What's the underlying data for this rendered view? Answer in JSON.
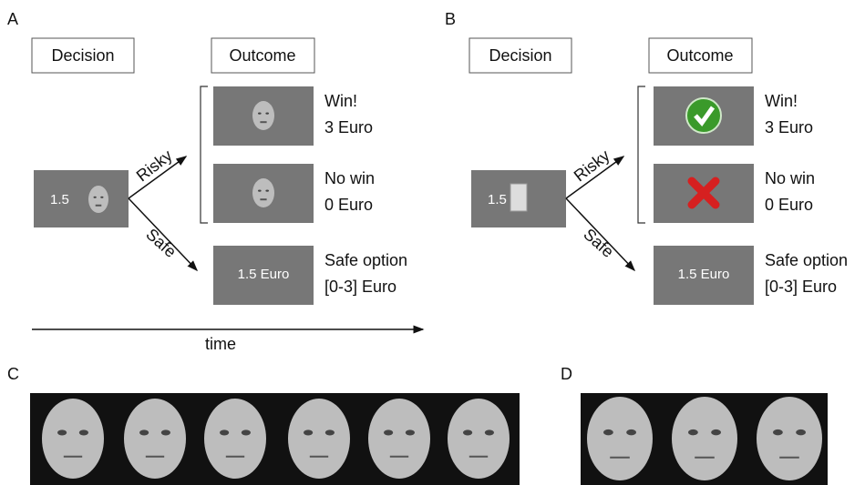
{
  "panels": [
    {
      "label": "A",
      "decision": "Decision",
      "outcome": "Outcome",
      "stake": "1.5",
      "risky": "Risky",
      "safe": "Safe",
      "outcomes": [
        {
          "line1": "Win!",
          "line2": "3 Euro"
        },
        {
          "line1": "No win",
          "line2": "0 Euro"
        },
        {
          "line1": "Safe option",
          "line2": "[0-3] Euro"
        }
      ],
      "safe_box": "1.5 Euro",
      "time": "time"
    },
    {
      "label": "B",
      "decision": "Decision",
      "outcome": "Outcome",
      "stake": "1.5",
      "risky": "Risky",
      "safe": "Safe",
      "outcomes": [
        {
          "line1": "Win!",
          "line2": "3 Euro"
        },
        {
          "line1": "No win",
          "line2": "0 Euro"
        },
        {
          "line1": "Safe option",
          "line2": "[0-3] Euro"
        }
      ],
      "safe_box": "1.5 Euro"
    }
  ],
  "panel_c": "C",
  "panel_d": "D"
}
